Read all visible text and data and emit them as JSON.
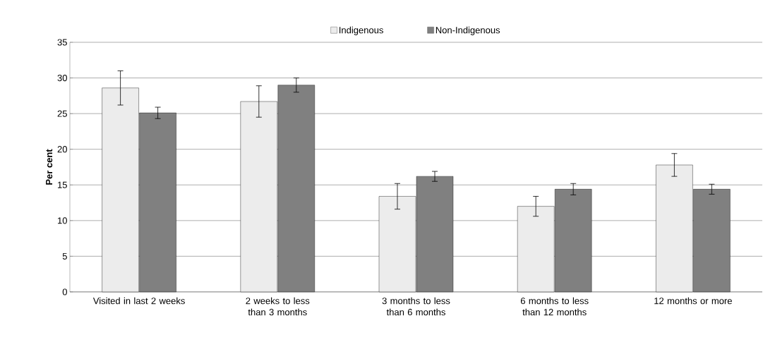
{
  "chart_data": {
    "type": "bar",
    "ylabel": "Per cent",
    "categories": [
      "Visited in last 2 weeks",
      "2 weeks to less than 3 months",
      "3 months to less than 6 months",
      "6 months to less than 12 months",
      "12 months or more"
    ],
    "series": [
      {
        "name": "Indigenous",
        "color": "#ececec",
        "values": [
          28.6,
          26.7,
          13.4,
          12.0,
          17.8
        ],
        "errors": [
          2.4,
          2.2,
          1.8,
          1.4,
          1.6
        ]
      },
      {
        "name": "Non-Indigenous",
        "color": "#808080",
        "values": [
          25.1,
          29.0,
          16.2,
          14.4,
          14.4
        ],
        "errors": [
          0.8,
          1.0,
          0.7,
          0.8,
          0.7
        ]
      }
    ],
    "ylim": [
      0,
      35
    ],
    "yticks": [
      0,
      5,
      10,
      15,
      20,
      25,
      30,
      35
    ],
    "grid": "y",
    "legend": "top"
  }
}
